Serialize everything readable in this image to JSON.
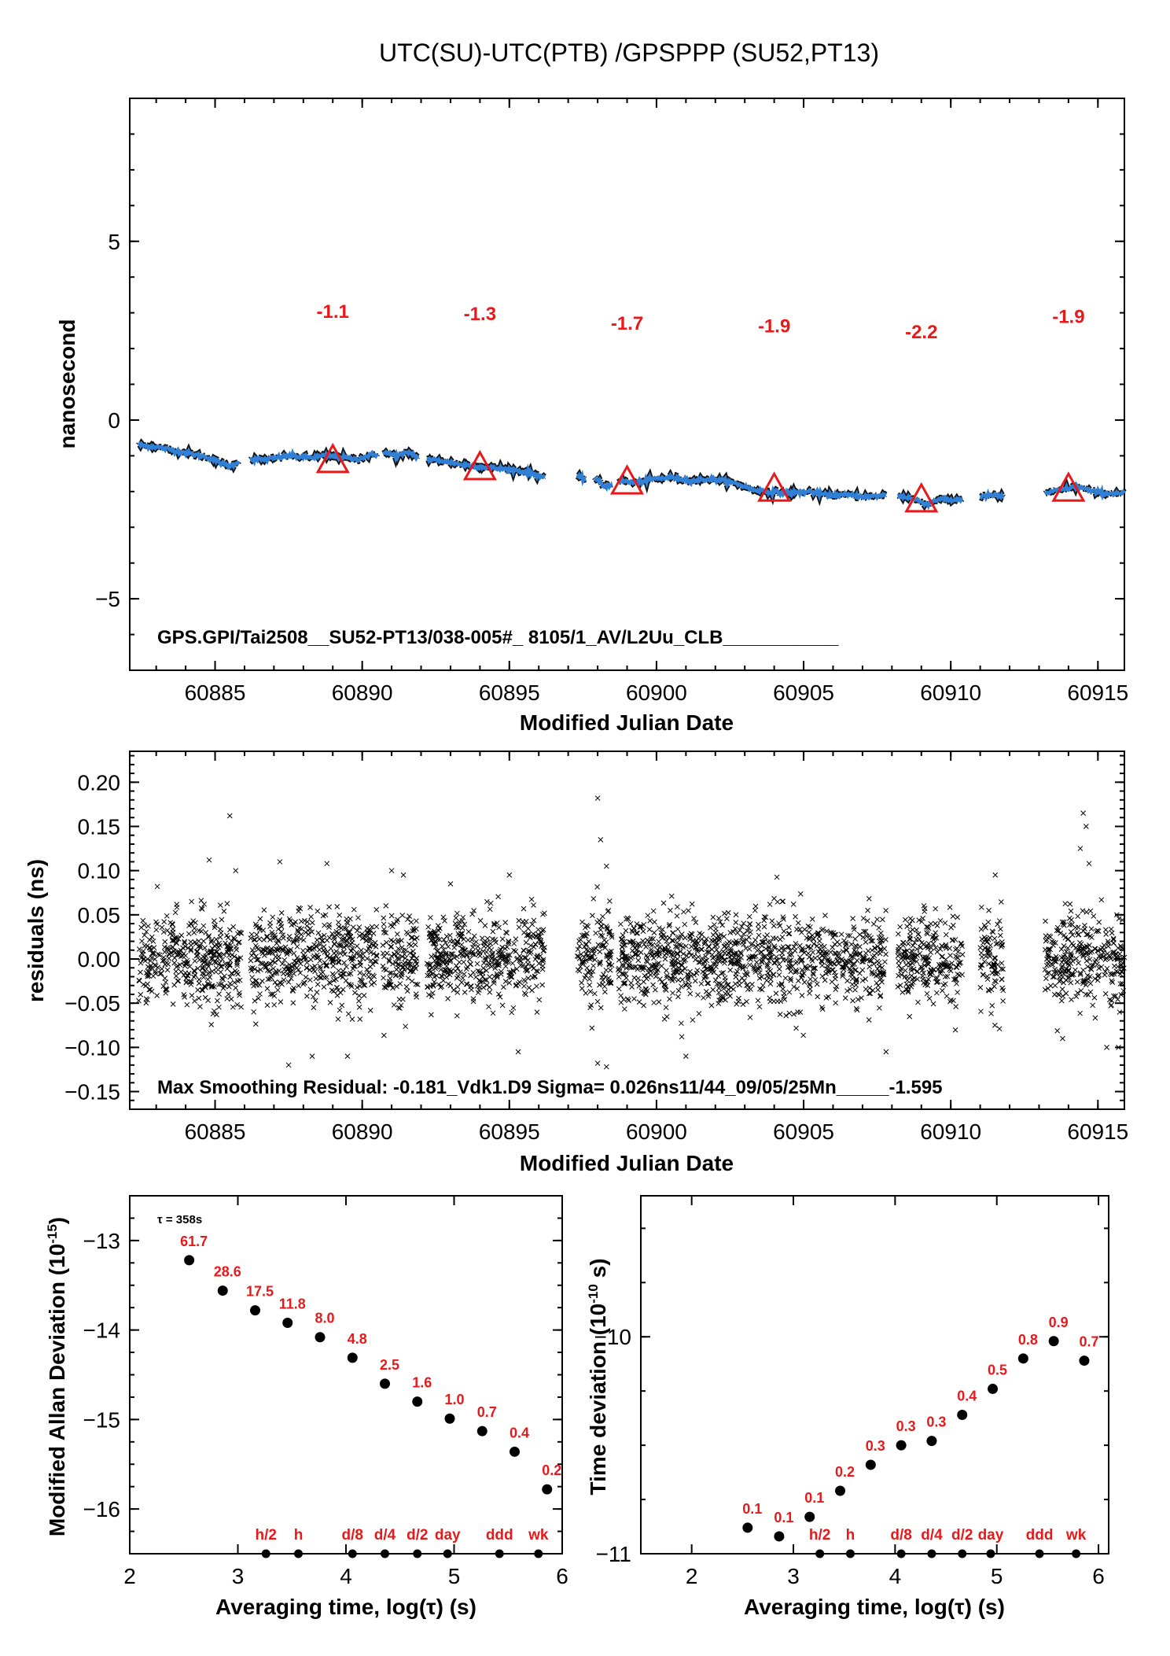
{
  "page": {
    "title": "UTC(SU)-UTC(PTB)  /GPSPPP  (SU52,PT13)",
    "colors": {
      "offset_series": "#2f80d6",
      "annotation": "#e8191a",
      "marks": "#000000"
    }
  },
  "chart_data": [
    {
      "type": "line",
      "id": "offset",
      "xlabel": "Modified Julian Date",
      "ylabel": "nanosecond",
      "xlim": [
        60882.1,
        60915.9
      ],
      "ylim": [
        -7,
        9
      ],
      "xticks": [
        60885,
        60890,
        60895,
        60900,
        60905,
        60910,
        60915
      ],
      "yticks": [
        -5,
        0,
        5
      ],
      "annotation": "GPS.GPI/Tai2508__SU52-PT13/038-005#_  8105/1_AV/L2Uu_CLB___________",
      "segments": [
        [
          [
            60882.4,
            -0.7
          ],
          [
            60883.0,
            -0.75
          ],
          [
            60883.6,
            -0.85
          ],
          [
            60884.2,
            -0.95
          ],
          [
            60884.8,
            -1.05
          ],
          [
            60885.2,
            -1.2
          ],
          [
            60885.5,
            -1.3
          ],
          [
            60885.8,
            -1.15
          ]
        ],
        [
          [
            60886.2,
            -1.1
          ],
          [
            60886.8,
            -1.1
          ],
          [
            60887.5,
            -1.0
          ],
          [
            60888.2,
            -1.05
          ],
          [
            60888.8,
            -1.0
          ],
          [
            60889.4,
            -1.05
          ],
          [
            60889.8,
            -1.1
          ],
          [
            60890.2,
            -1.0
          ],
          [
            60890.5,
            -0.95
          ]
        ],
        [
          [
            60890.7,
            -0.9
          ],
          [
            60891.2,
            -1.0
          ],
          [
            60891.6,
            -0.9
          ],
          [
            60891.9,
            -1.05
          ]
        ],
        [
          [
            60892.2,
            -1.1
          ],
          [
            60892.8,
            -1.15
          ],
          [
            60893.4,
            -1.25
          ],
          [
            60894.0,
            -1.3
          ],
          [
            60894.6,
            -1.35
          ],
          [
            60895.2,
            -1.4
          ],
          [
            60895.8,
            -1.5
          ],
          [
            60896.2,
            -1.6
          ]
        ],
        [
          [
            60897.3,
            -1.6
          ],
          [
            60897.6,
            -1.65
          ]
        ],
        [
          [
            60897.9,
            -1.6
          ],
          [
            60898.2,
            -1.85
          ],
          [
            60898.5,
            -1.8
          ]
        ],
        [
          [
            60898.7,
            -1.7
          ],
          [
            60899.3,
            -1.75
          ],
          [
            60899.9,
            -1.65
          ],
          [
            60900.5,
            -1.6
          ],
          [
            60901.2,
            -1.7
          ],
          [
            60901.8,
            -1.65
          ],
          [
            60902.3,
            -1.7
          ],
          [
            60902.8,
            -1.8
          ],
          [
            60903.3,
            -1.95
          ],
          [
            60903.8,
            -2.0
          ],
          [
            60904.5,
            -2.05
          ],
          [
            60905.2,
            -2.0
          ],
          [
            60905.8,
            -2.1
          ],
          [
            60906.5,
            -2.1
          ],
          [
            60907.2,
            -2.15
          ],
          [
            60907.8,
            -2.1
          ]
        ],
        [
          [
            60908.2,
            -2.1
          ],
          [
            60908.7,
            -2.2
          ],
          [
            60909.2,
            -2.35
          ],
          [
            60909.6,
            -2.2
          ],
          [
            60910.0,
            -2.25
          ],
          [
            60910.4,
            -2.2
          ]
        ],
        [
          [
            60911.0,
            -2.15
          ],
          [
            60911.4,
            -2.1
          ],
          [
            60911.8,
            -2.15
          ]
        ],
        [
          [
            60913.2,
            -2.05
          ],
          [
            60913.8,
            -1.95
          ],
          [
            60914.3,
            -1.85
          ],
          [
            60914.8,
            -2.0
          ],
          [
            60915.3,
            -2.05
          ],
          [
            60915.9,
            -2.05
          ]
        ]
      ],
      "markers": [
        {
          "x": 60889.0,
          "y": -1.1,
          "label": "-1.1"
        },
        {
          "x": 60894.0,
          "y": -1.3,
          "label": "-1.3"
        },
        {
          "x": 60899.0,
          "y": -1.7,
          "label": "-1.7"
        },
        {
          "x": 60904.0,
          "y": -1.9,
          "label": "-1.9"
        },
        {
          "x": 60909.0,
          "y": -2.2,
          "label": "-2.2"
        },
        {
          "x": 60914.0,
          "y": -1.9,
          "label": "-1.9"
        }
      ]
    },
    {
      "type": "scatter",
      "id": "residuals",
      "xlabel": "Modified Julian Date",
      "ylabel": "residuals (ns)",
      "xlim": [
        60882.1,
        60915.9
      ],
      "ylim": [
        -0.17,
        0.235
      ],
      "xticks": [
        60885,
        60890,
        60895,
        60900,
        60905,
        60910,
        60915
      ],
      "yticks": [
        -0.15,
        -0.1,
        -0.05,
        0.0,
        0.05,
        0.1,
        0.15,
        0.2
      ],
      "ytick_labels": [
        "−0.15",
        "−0.10",
        "−0.05",
        "0.00",
        "0.05",
        "0.10",
        "0.15",
        "0.20"
      ],
      "annotation": "Max Smoothing Residual: -0.181_Vdk1.D9  Sigma= 0.026ns11/44_09/05/25Mn_____-1.595",
      "sigma": 0.026,
      "segments": [
        [
          60882.4,
          60885.9
        ],
        [
          60886.2,
          60890.5
        ],
        [
          60890.7,
          60891.9
        ],
        [
          60892.2,
          60896.2
        ],
        [
          60897.3,
          60898.5
        ],
        [
          60898.7,
          60907.8
        ],
        [
          60908.2,
          60910.4
        ],
        [
          60911.0,
          60911.8
        ],
        [
          60913.2,
          60915.9
        ]
      ],
      "outliers": [
        [
          60884.8,
          0.112
        ],
        [
          60885.5,
          0.162
        ],
        [
          60885.7,
          0.1
        ],
        [
          60887.2,
          0.11
        ],
        [
          60887.5,
          -0.12
        ],
        [
          60888.8,
          0.108
        ],
        [
          60888.3,
          -0.11
        ],
        [
          60889.5,
          -0.11
        ],
        [
          60891.0,
          0.1
        ],
        [
          60891.4,
          0.095
        ],
        [
          60893.0,
          0.085
        ],
        [
          60895.0,
          0.095
        ],
        [
          60895.3,
          -0.105
        ],
        [
          60898.0,
          0.182
        ],
        [
          60898.1,
          0.135
        ],
        [
          60898.3,
          0.105
        ],
        [
          60898.3,
          -0.122
        ],
        [
          60898.0,
          -0.118
        ],
        [
          60901.0,
          -0.11
        ],
        [
          60907.8,
          -0.105
        ],
        [
          60914.5,
          0.165
        ],
        [
          60914.6,
          0.15
        ],
        [
          60914.4,
          0.125
        ],
        [
          60914.7,
          0.108
        ],
        [
          60915.7,
          -0.1
        ],
        [
          60915.3,
          -0.1
        ],
        [
          60913.8,
          -0.09
        ],
        [
          60911.5,
          -0.075
        ]
      ]
    },
    {
      "type": "scatter",
      "id": "mdev",
      "xlabel": "Averaging time, log(τ) (s)",
      "ylabel": "Modified Allan Deviation (10",
      "ylabel_sup": "-15",
      "ylabel_tail": ")",
      "xlim": [
        2,
        6
      ],
      "ylim": [
        -16.5,
        -12.5
      ],
      "xticks": [
        2,
        3,
        4,
        5,
        6
      ],
      "yticks": [
        -16,
        -15,
        -14,
        -13
      ],
      "tau_note": "τ = 358s",
      "points": [
        {
          "x": 2.55,
          "y": -13.22,
          "label": "61.7"
        },
        {
          "x": 2.86,
          "y": -13.56,
          "label": "28.6"
        },
        {
          "x": 3.16,
          "y": -13.78,
          "label": "17.5"
        },
        {
          "x": 3.46,
          "y": -13.92,
          "label": "11.8"
        },
        {
          "x": 3.76,
          "y": -14.08,
          "label": "8.0"
        },
        {
          "x": 4.06,
          "y": -14.31,
          "label": "4.8"
        },
        {
          "x": 4.36,
          "y": -14.6,
          "label": "2.5"
        },
        {
          "x": 4.66,
          "y": -14.8,
          "label": "1.6"
        },
        {
          "x": 4.96,
          "y": -14.99,
          "label": "1.0"
        },
        {
          "x": 5.26,
          "y": -15.13,
          "label": "0.7"
        },
        {
          "x": 5.56,
          "y": -15.36,
          "label": "0.4"
        },
        {
          "x": 5.86,
          "y": -15.78,
          "label": "0.2"
        }
      ],
      "interval_marks": [
        {
          "x": 3.26,
          "label": "h/2"
        },
        {
          "x": 3.56,
          "label": "h"
        },
        {
          "x": 4.06,
          "label": "d/8"
        },
        {
          "x": 4.36,
          "label": "d/4"
        },
        {
          "x": 4.66,
          "label": "d/2"
        },
        {
          "x": 4.94,
          "label": "day"
        },
        {
          "x": 5.42,
          "label": "ddd"
        },
        {
          "x": 5.78,
          "label": "wk"
        }
      ]
    },
    {
      "type": "scatter",
      "id": "tdev",
      "xlabel": "Averaging time, log(τ) (s)",
      "ylabel": "Time deviation (10",
      "ylabel_sup": "-10",
      "ylabel_tail": " s)",
      "xlim": [
        1.5,
        6.1
      ],
      "ylim": [
        -11,
        -9.35
      ],
      "xticks": [
        2,
        3,
        4,
        5,
        6
      ],
      "yticks": [
        -11,
        -10
      ],
      "points": [
        {
          "x": 2.55,
          "y": -10.88,
          "label": "0.1"
        },
        {
          "x": 2.86,
          "y": -10.92,
          "label": "0.1"
        },
        {
          "x": 3.16,
          "y": -10.83,
          "label": "0.1"
        },
        {
          "x": 3.46,
          "y": -10.71,
          "label": "0.2"
        },
        {
          "x": 3.76,
          "y": -10.59,
          "label": "0.3"
        },
        {
          "x": 4.06,
          "y": -10.5,
          "label": "0.3"
        },
        {
          "x": 4.36,
          "y": -10.48,
          "label": "0.3"
        },
        {
          "x": 4.66,
          "y": -10.36,
          "label": "0.4"
        },
        {
          "x": 4.96,
          "y": -10.24,
          "label": "0.5"
        },
        {
          "x": 5.26,
          "y": -10.1,
          "label": "0.8"
        },
        {
          "x": 5.56,
          "y": -10.02,
          "label": "0.9"
        },
        {
          "x": 5.86,
          "y": -10.11,
          "label": "0.7"
        }
      ],
      "interval_marks": [
        {
          "x": 3.26,
          "label": "h/2"
        },
        {
          "x": 3.56,
          "label": "h"
        },
        {
          "x": 4.06,
          "label": "d/8"
        },
        {
          "x": 4.36,
          "label": "d/4"
        },
        {
          "x": 4.66,
          "label": "d/2"
        },
        {
          "x": 4.94,
          "label": "day"
        },
        {
          "x": 5.42,
          "label": "ddd"
        },
        {
          "x": 5.78,
          "label": "wk"
        }
      ]
    }
  ]
}
